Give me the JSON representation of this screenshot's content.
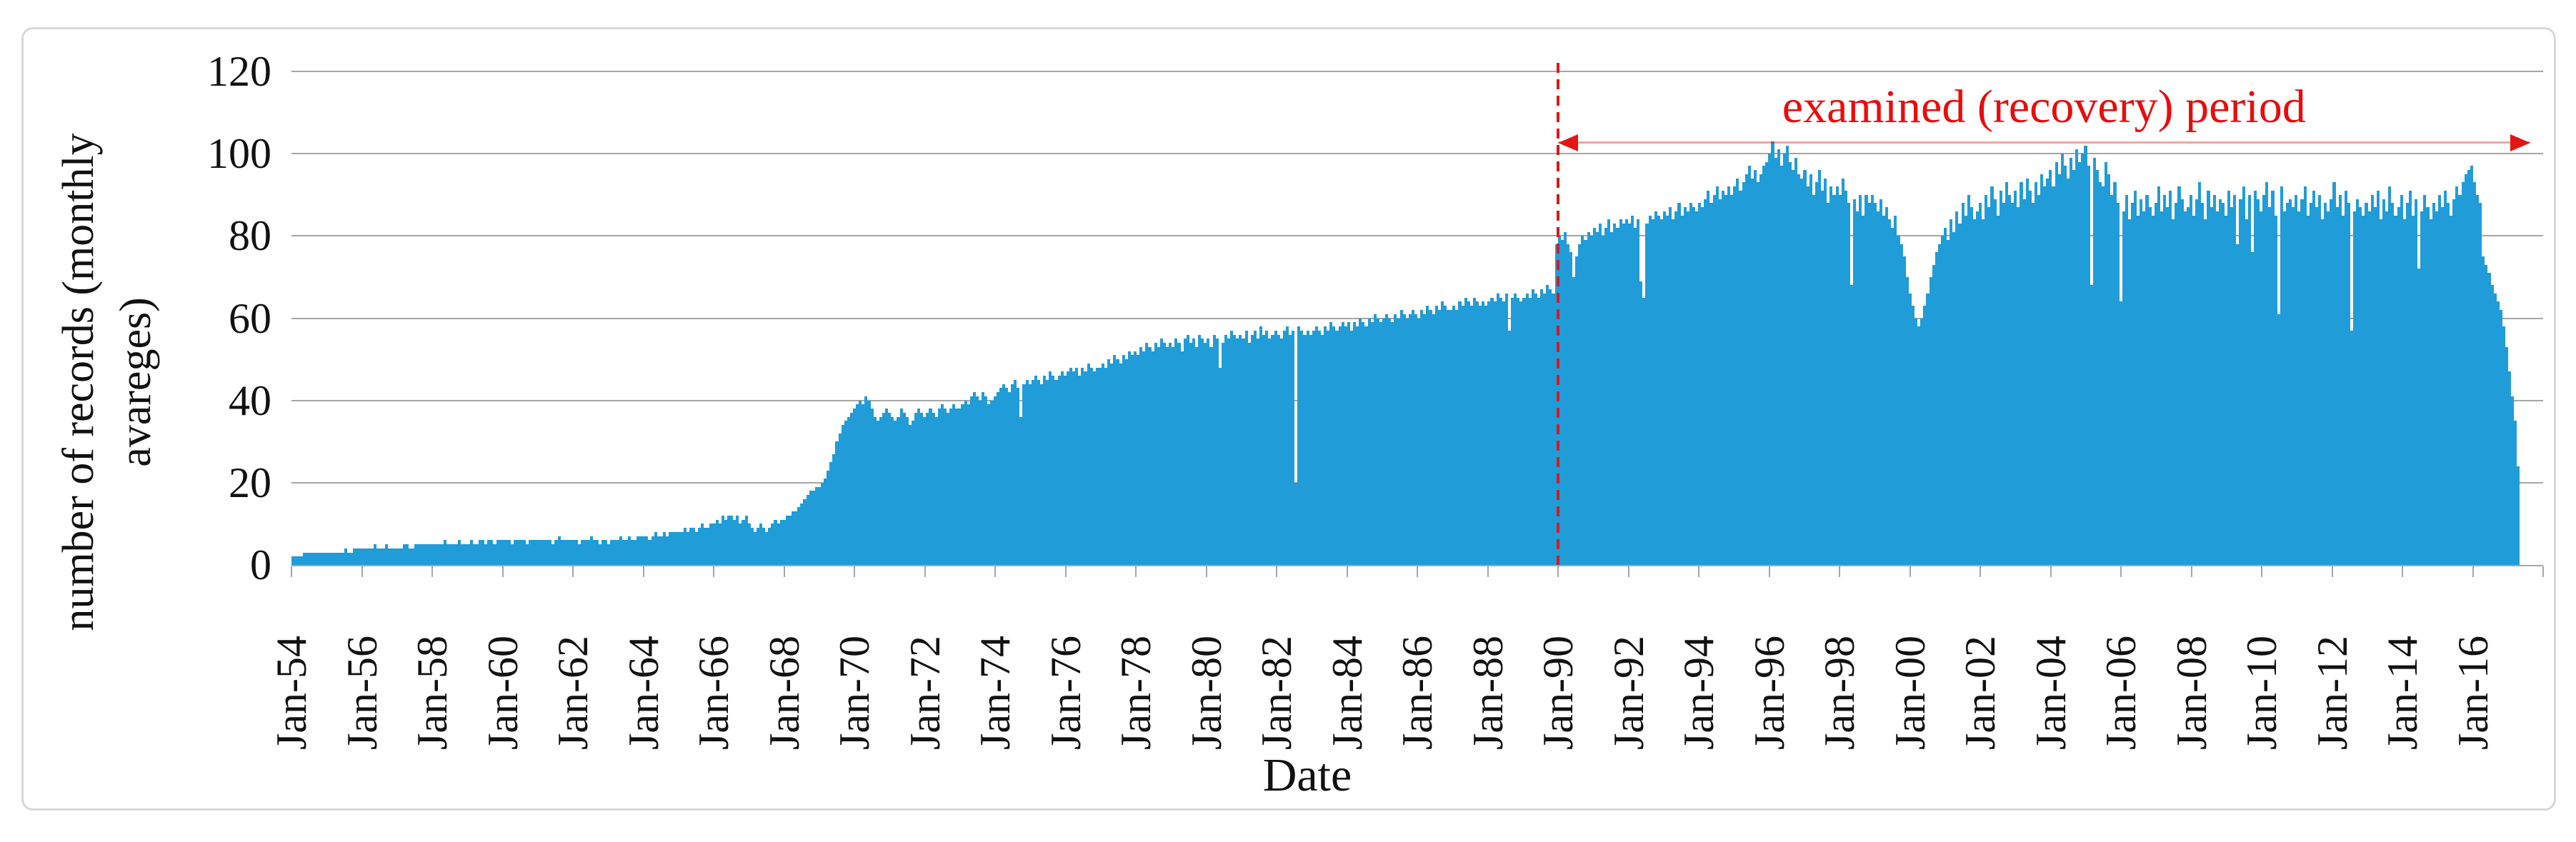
{
  "colors": {
    "bar": "#209cd8",
    "gridline": "#a6a6a6",
    "annotation_red": "#e31515",
    "chart_border": "#d8d8d8"
  },
  "chart_data": {
    "type": "bar",
    "title": "",
    "xlabel": "Date",
    "ylabel": "number of records (monthly\navareges)",
    "ylim": [
      0,
      120
    ],
    "y_ticks": [
      0,
      20,
      40,
      60,
      80,
      100,
      120
    ],
    "grid": "horizontal",
    "legend": "none",
    "x_tick_labels": [
      "Jan-54",
      "Jan-56",
      "Jan-58",
      "Jan-60",
      "Jan-62",
      "Jan-64",
      "Jan-66",
      "Jan-68",
      "Jan-70",
      "Jan-72",
      "Jan-74",
      "Jan-76",
      "Jan-78",
      "Jan-80",
      "Jan-82",
      "Jan-84",
      "Jan-86",
      "Jan-88",
      "Jan-90",
      "Jan-92",
      "Jan-94",
      "Jan-96",
      "Jan-98",
      "Jan-00",
      "Jan-02",
      "Jan-04",
      "Jan-06",
      "Jan-08",
      "Jan-10",
      "Jan-12",
      "Jan-14",
      "Jan-16"
    ],
    "x_months_per_tick": 24,
    "x_months_across_plot": 768,
    "annotation": {
      "text": "examined (recovery) period",
      "period_start_label": "Jan-90",
      "period_start_year": 1990,
      "arrow": "double-headed, from dashed line at Jan-90 to right edge of data"
    },
    "series_name": "number of records (monthly averages)",
    "frequency": "monthly",
    "start": "Jan-1954",
    "end": "Jun-2017",
    "values_by_year": {
      "1954": [
        2,
        2,
        2,
        2,
        3,
        3,
        3,
        3,
        3,
        3,
        3,
        3
      ],
      "1955": [
        3,
        3,
        3,
        3,
        3,
        3,
        4,
        3,
        3,
        4,
        4,
        4
      ],
      "1956": [
        4,
        4,
        4,
        4,
        5,
        4,
        4,
        4,
        5,
        4,
        4,
        4
      ],
      "1957": [
        4,
        4,
        5,
        5,
        4,
        4,
        5,
        5,
        5,
        5,
        5,
        5
      ],
      "1958": [
        5,
        5,
        5,
        5,
        6,
        5,
        5,
        5,
        5,
        6,
        5,
        5
      ],
      "1959": [
        5,
        6,
        5,
        5,
        6,
        6,
        5,
        6,
        6,
        5,
        6,
        6
      ],
      "1960": [
        6,
        6,
        6,
        5,
        6,
        6,
        6,
        6,
        5,
        6,
        6,
        6
      ],
      "1961": [
        6,
        6,
        6,
        6,
        6,
        5,
        6,
        7,
        6,
        6,
        6,
        6
      ],
      "1962": [
        6,
        6,
        5,
        6,
        6,
        6,
        7,
        6,
        6,
        5,
        6,
        6
      ],
      "1963": [
        5,
        6,
        6,
        6,
        7,
        6,
        6,
        7,
        6,
        6,
        7,
        7
      ],
      "1964": [
        7,
        7,
        6,
        7,
        8,
        7,
        7,
        8,
        7,
        8,
        8,
        8
      ],
      "1965": [
        8,
        8,
        9,
        8,
        9,
        9,
        8,
        9,
        10,
        9,
        9,
        10
      ],
      "1966": [
        10,
        11,
        10,
        12,
        11,
        12,
        12,
        11,
        12,
        10,
        11,
        12
      ],
      "1967": [
        10,
        9,
        8,
        9,
        10,
        9,
        8,
        9,
        10,
        11,
        10,
        11
      ],
      "1968": [
        11,
        12,
        12,
        13,
        13,
        14,
        15,
        16,
        17,
        18,
        18,
        19
      ],
      "1969": [
        19,
        20,
        21,
        23,
        25,
        27,
        30,
        32,
        34,
        35,
        36,
        37
      ],
      "1970": [
        38,
        39,
        40,
        39,
        41,
        40,
        38,
        36,
        35,
        36,
        37,
        38
      ],
      "1971": [
        37,
        36,
        35,
        36,
        38,
        37,
        36,
        34,
        35,
        37,
        38,
        37
      ],
      "1972": [
        36,
        37,
        38,
        37,
        36,
        38,
        39,
        38,
        37,
        38,
        39,
        38
      ],
      "1973": [
        38,
        39,
        40,
        39,
        41,
        42,
        41,
        40,
        42,
        41,
        39,
        40
      ],
      "1974": [
        41,
        42,
        43,
        44,
        43,
        42,
        44,
        45,
        43,
        36,
        44,
        45
      ],
      "1975": [
        44,
        45,
        46,
        45,
        44,
        46,
        45,
        47,
        46,
        45,
        46,
        47
      ],
      "1976": [
        46,
        47,
        48,
        47,
        48,
        46,
        48,
        47,
        49,
        48,
        47,
        48
      ],
      "1977": [
        48,
        49,
        48,
        50,
        49,
        51,
        50,
        49,
        51,
        50,
        52,
        51
      ],
      "1978": [
        52,
        51,
        53,
        52,
        54,
        53,
        52,
        54,
        53,
        55,
        54,
        53
      ],
      "1979": [
        54,
        53,
        55,
        54,
        52,
        55,
        56,
        54,
        55,
        53,
        56,
        55
      ],
      "1980": [
        54,
        55,
        53,
        56,
        55,
        48,
        54,
        56,
        55,
        57,
        56,
        55
      ],
      "1981": [
        56,
        55,
        57,
        54,
        56,
        57,
        55,
        58,
        56,
        57,
        55,
        56
      ],
      "1982": [
        57,
        56,
        55,
        57,
        58,
        56,
        57,
        20,
        58,
        57,
        56,
        57
      ],
      "1983": [
        56,
        57,
        58,
        57,
        56,
        58,
        57,
        59,
        58,
        57,
        58,
        59
      ],
      "1984": [
        58,
        59,
        57,
        59,
        58,
        60,
        59,
        58,
        60,
        59,
        61,
        60
      ],
      "1985": [
        59,
        60,
        61,
        60,
        59,
        61,
        60,
        62,
        61,
        60,
        61,
        62
      ],
      "1986": [
        61,
        60,
        62,
        61,
        63,
        62,
        61,
        63,
        62,
        64,
        63,
        62
      ],
      "1987": [
        62,
        63,
        62,
        64,
        63,
        65,
        64,
        63,
        65,
        64,
        63,
        64
      ],
      "1988": [
        63,
        64,
        65,
        64,
        66,
        65,
        64,
        66,
        57,
        65,
        66,
        65
      ],
      "1989": [
        64,
        65,
        66,
        65,
        67,
        66,
        65,
        67,
        66,
        68,
        67,
        66
      ],
      "1990": [
        78,
        80,
        79,
        81,
        78,
        76,
        70,
        75,
        78,
        80,
        79,
        81
      ],
      "1991": [
        80,
        82,
        81,
        83,
        80,
        82,
        84,
        81,
        83,
        82,
        84,
        83
      ],
      "1992": [
        84,
        83,
        85,
        82,
        84,
        69,
        65,
        83,
        85,
        84,
        86,
        85
      ],
      "1993": [
        84,
        86,
        85,
        87,
        84,
        86,
        88,
        85,
        87,
        86,
        88,
        87
      ],
      "1994": [
        86,
        88,
        87,
        89,
        91,
        88,
        90,
        92,
        89,
        91,
        90,
        92
      ],
      "1995": [
        90,
        92,
        94,
        91,
        93,
        95,
        97,
        94,
        96,
        93,
        95,
        97
      ],
      "1996": [
        98,
        100,
        103,
        99,
        101,
        97,
        100,
        102,
        98,
        96,
        99,
        95
      ],
      "1997": [
        94,
        96,
        92,
        95,
        90,
        93,
        96,
        91,
        94,
        88,
        92,
        90
      ],
      "1998": [
        92,
        90,
        94,
        91,
        88,
        68,
        89,
        86,
        90,
        85,
        90,
        88
      ],
      "1999": [
        90,
        88,
        86,
        89,
        85,
        87,
        84,
        82,
        85,
        80,
        78,
        75
      ],
      "2000": [
        70,
        66,
        63,
        60,
        58,
        60,
        63,
        66,
        70,
        73,
        76,
        78
      ],
      "2001": [
        80,
        82,
        79,
        84,
        81,
        86,
        83,
        88,
        85,
        90,
        87,
        84
      ],
      "2002": [
        86,
        88,
        84,
        90,
        87,
        92,
        89,
        85,
        91,
        88,
        93,
        90
      ],
      "2003": [
        88,
        91,
        87,
        93,
        89,
        94,
        91,
        88,
        93,
        90,
        95,
        92
      ],
      "2004": [
        94,
        96,
        92,
        98,
        95,
        100,
        97,
        94,
        99,
        96,
        101,
        98
      ],
      "2005": [
        100,
        102,
        97,
        68,
        99,
        96,
        93,
        92,
        98,
        95,
        90,
        93
      ],
      "2006": [
        88,
        64,
        86,
        90,
        84,
        88,
        91,
        85,
        89,
        86,
        90,
        87
      ],
      "2007": [
        85,
        88,
        92,
        86,
        90,
        87,
        91,
        84,
        88,
        92,
        89,
        86
      ],
      "2008": [
        87,
        90,
        85,
        89,
        93,
        88,
        84,
        91,
        87,
        90,
        86,
        89
      ],
      "2009": [
        88,
        85,
        91,
        87,
        90,
        78,
        89,
        92,
        84,
        90,
        76,
        91
      ],
      "2010": [
        89,
        86,
        90,
        93,
        87,
        91,
        85,
        61,
        92,
        86,
        88,
        89
      ],
      "2011": [
        87,
        90,
        86,
        89,
        92,
        85,
        88,
        91,
        87,
        90,
        84,
        88
      ],
      "2012": [
        86,
        89,
        93,
        87,
        90,
        85,
        91,
        88,
        57,
        86,
        89,
        87
      ],
      "2013": [
        85,
        88,
        86,
        90,
        87,
        91,
        84,
        89,
        86,
        92,
        88,
        85
      ],
      "2014": [
        87,
        90,
        84,
        88,
        91,
        85,
        89,
        72,
        86,
        90,
        87,
        84
      ],
      "2015": [
        88,
        86,
        90,
        87,
        91,
        88,
        85,
        89,
        92,
        90,
        93,
        95
      ],
      "2016": [
        96,
        97,
        93,
        90,
        88,
        75,
        73,
        71,
        68,
        66,
        64,
        62
      ],
      "2017": [
        58,
        53,
        47,
        41,
        35,
        24
      ]
    }
  }
}
